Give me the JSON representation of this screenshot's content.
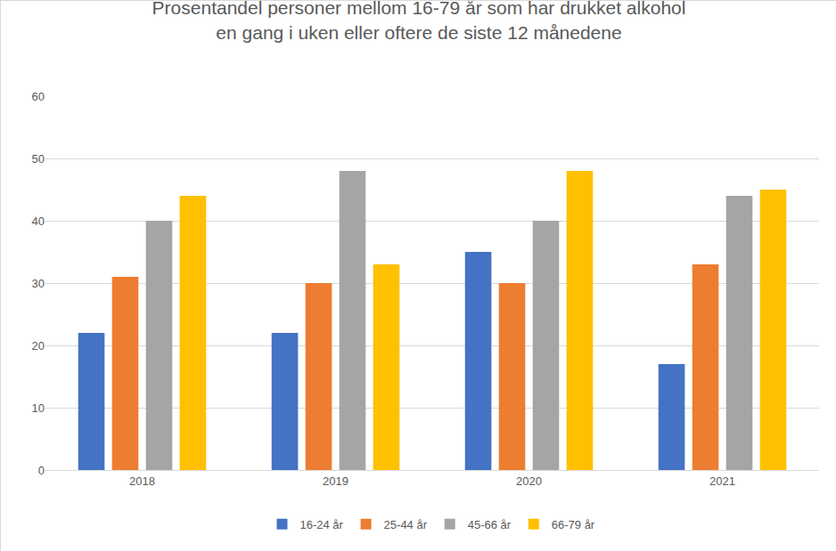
{
  "chart_data": {
    "type": "bar",
    "title": "Prosentandel personer mellom 16-79 år som har drukket alkohol\nen gang i uken eller oftere de siste 12 månedene",
    "categories": [
      "2018",
      "2019",
      "2020",
      "2021"
    ],
    "series": [
      {
        "name": "16-24 år",
        "color": "#4472c4",
        "values": [
          22,
          22,
          35,
          17
        ]
      },
      {
        "name": "25-44 år",
        "color": "#ed7d31",
        "values": [
          31,
          30,
          30,
          33
        ]
      },
      {
        "name": "45-66 år",
        "color": "#a5a5a5",
        "values": [
          40,
          48,
          40,
          44
        ]
      },
      {
        "name": "66-79 år",
        "color": "#ffc000",
        "values": [
          44,
          33,
          48,
          45
        ]
      }
    ],
    "ylim": [
      0,
      60
    ],
    "yticks": [
      0,
      10,
      20,
      30,
      40,
      50,
      60
    ],
    "grid": true,
    "legend": "bottom"
  }
}
